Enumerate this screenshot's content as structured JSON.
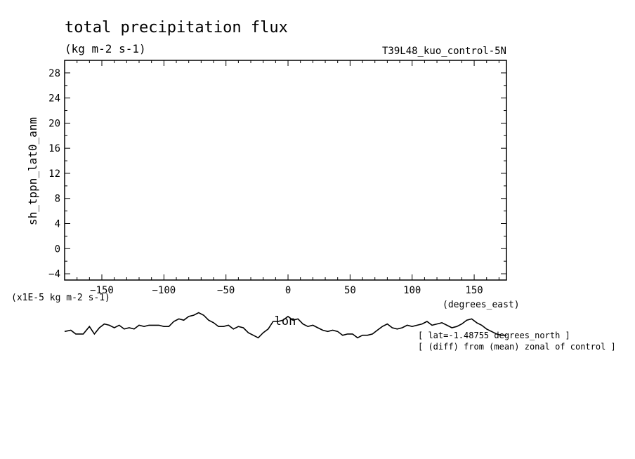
{
  "chart_data": {
    "type": "line",
    "title": "total precipitation flux",
    "units": "(kg m-2 s-1)",
    "run_label": "T39L48_kuo_control-5N",
    "ylabel": "sh_tppn_lat0_anm",
    "y_scale_note": "(x1E-5 kg m-2 s-1)",
    "xlabel": "lon",
    "x_units": "(degrees_east)",
    "xlim": [
      -180,
      176
    ],
    "ylim": [
      -5,
      30
    ],
    "x_ticks": [
      -150,
      -100,
      -50,
      0,
      50,
      100,
      150
    ],
    "y_ticks": [
      -4,
      0,
      4,
      8,
      12,
      16,
      20,
      24,
      28
    ],
    "annotations": [
      "[ lat=-1.48755 degrees_north ]",
      "[ (diff) from (mean) zonal of control ]"
    ],
    "series": [
      {
        "x": [
          -180,
          -175,
          -171,
          -165,
          -160,
          -156,
          -152,
          -148,
          -144,
          -140,
          -136,
          -132,
          -128,
          -124,
          -120,
          -116,
          -112,
          -108,
          -104,
          -100,
          -96,
          -92,
          -88,
          -84,
          -80,
          -76,
          -72,
          -68,
          -64,
          -60,
          -56,
          -52,
          -48,
          -44,
          -40,
          -36,
          -32,
          -28,
          -24,
          -20,
          -16,
          -12,
          -8,
          -4,
          0,
          4,
          8,
          12,
          16,
          20,
          24,
          28,
          32,
          36,
          40,
          44,
          48,
          52,
          56,
          60,
          64,
          68,
          72,
          76,
          80,
          84,
          88,
          92,
          96,
          100,
          104,
          108,
          112,
          116,
          120,
          124,
          128,
          132,
          136,
          140,
          144,
          148,
          152,
          156,
          160,
          164,
          168,
          172,
          176
        ],
        "values": [
          -13.2,
          -13.0,
          -13.6,
          -13.6,
          -12.4,
          -13.6,
          -12.6,
          -12.0,
          -12.2,
          -12.6,
          -12.2,
          -12.8,
          -12.6,
          -12.8,
          -12.2,
          -12.4,
          -12.2,
          -12.2,
          -12.2,
          -12.4,
          -12.4,
          -11.6,
          -11.2,
          -11.4,
          -10.8,
          -10.6,
          -10.2,
          -10.6,
          -11.4,
          -11.8,
          -12.4,
          -12.4,
          -12.2,
          -12.8,
          -12.4,
          -12.6,
          -13.4,
          -13.8,
          -14.2,
          -13.4,
          -12.8,
          -11.6,
          -11.6,
          -11.4,
          -10.8,
          -11.4,
          -11.2,
          -12.0,
          -12.4,
          -12.2,
          -12.6,
          -13.0,
          -13.2,
          -13.0,
          -13.2,
          -13.8,
          -13.6,
          -13.6,
          -14.2,
          -13.8,
          -13.8,
          -13.6,
          -13.0,
          -12.4,
          -12.0,
          -12.6,
          -12.8,
          -12.6,
          -12.2,
          -12.4,
          -12.2,
          -12.0,
          -11.6,
          -12.2,
          -12.0,
          -11.8,
          -12.2,
          -12.6,
          -12.4,
          -12.0,
          -11.4,
          -11.2,
          -11.8,
          -12.2,
          -12.8,
          -13.2,
          -13.6,
          -13.8,
          -13.8
        ]
      }
    ]
  }
}
